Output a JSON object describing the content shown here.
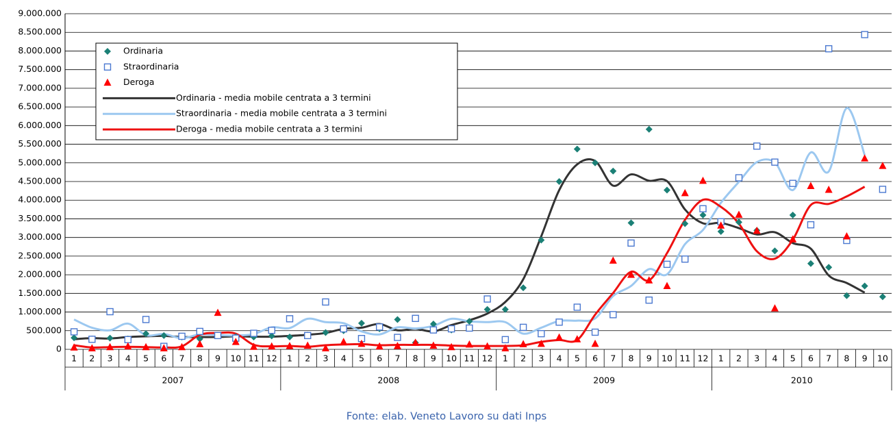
{
  "chart_data": {
    "type": "line",
    "caption": "Fonte: elab. Veneto Lavoro su dati Inps",
    "groups": [
      {
        "name": "2007",
        "categories": [
          "1",
          "2",
          "3",
          "4",
          "5",
          "6",
          "7",
          "8",
          "9",
          "10",
          "11",
          "12"
        ]
      },
      {
        "name": "2008",
        "categories": [
          "1",
          "2",
          "3",
          "4",
          "5",
          "6",
          "7",
          "8",
          "9",
          "10",
          "11",
          "12"
        ]
      },
      {
        "name": "2009",
        "categories": [
          "1",
          "2",
          "3",
          "4",
          "5",
          "6",
          "7",
          "8",
          "9",
          "10",
          "11",
          "12"
        ]
      },
      {
        "name": "2010",
        "categories": [
          "1",
          "2",
          "3",
          "4",
          "5",
          "6",
          "7",
          "8",
          "9",
          "10"
        ]
      }
    ],
    "ylim": [
      0,
      9000000
    ],
    "yticks": [
      0,
      {
        "value": 500000,
        "label": "500.000"
      },
      {
        "value": 1000000,
        "label": "1.000.000"
      },
      {
        "value": 1500000,
        "label": "1.500.000"
      },
      {
        "value": 2000000,
        "label": "2.000.000"
      },
      {
        "value": 2500000,
        "label": "2.500.000"
      },
      {
        "value": 3000000,
        "label": "3.000.000"
      },
      {
        "value": 3500000,
        "label": "3.500.000"
      },
      {
        "value": 4000000,
        "label": "4.000.000"
      },
      {
        "value": 4500000,
        "label": "4.500.000"
      },
      {
        "value": 5000000,
        "label": "5.000.000"
      },
      {
        "value": 5500000,
        "label": "5.500.000"
      },
      {
        "value": 6000000,
        "label": "6.000.000"
      },
      {
        "value": 6500000,
        "label": "6.500.000"
      },
      {
        "value": 7000000,
        "label": "7.000.000"
      },
      {
        "value": 7500000,
        "label": "7.500.000"
      },
      {
        "value": 8000000,
        "label": "8.000.000"
      },
      {
        "value": 8500000,
        "label": "8.500.000"
      },
      {
        "value": 9000000,
        "label": "9.000.000"
      }
    ],
    "grid": true,
    "legend": "upper left",
    "series": [
      {
        "name": "Ordinaria",
        "marker": "diamond",
        "color": "#1b8076",
        "values": [
          310000,
          280000,
          300000,
          280000,
          420000,
          370000,
          330000,
          280000,
          380000,
          340000,
          330000,
          360000,
          330000,
          380000,
          450000,
          500000,
          700000,
          550000,
          800000,
          180000,
          680000,
          520000,
          750000,
          1070000,
          1070000,
          1650000,
          2930000,
          4500000,
          5370000,
          5000000,
          4780000,
          3390000,
          5900000,
          4270000,
          3370000,
          3600000,
          3160000,
          3410000,
          3190000,
          2640000,
          3600000,
          2300000,
          2200000,
          1440000,
          1700000,
          1410000
        ]
      },
      {
        "name": "Straordinaria",
        "marker": "square",
        "color": "#4a78d0",
        "values": [
          470000,
          270000,
          1010000,
          260000,
          800000,
          80000,
          350000,
          480000,
          370000,
          300000,
          430000,
          510000,
          820000,
          370000,
          1270000,
          550000,
          290000,
          600000,
          320000,
          830000,
          520000,
          550000,
          570000,
          1350000,
          260000,
          590000,
          420000,
          730000,
          1130000,
          460000,
          930000,
          2850000,
          1320000,
          2280000,
          2420000,
          3770000,
          3420000,
          4600000,
          5450000,
          5020000,
          4450000,
          3340000,
          8060000,
          2920000,
          8440000,
          4290000
        ]
      },
      {
        "name": "Deroga",
        "marker": "triangle",
        "color": "#ff0000",
        "values": [
          50000,
          30000,
          60000,
          80000,
          60000,
          30000,
          60000,
          140000,
          980000,
          200000,
          70000,
          80000,
          90000,
          100000,
          30000,
          200000,
          150000,
          80000,
          90000,
          180000,
          100000,
          60000,
          130000,
          80000,
          30000,
          140000,
          150000,
          320000,
          270000,
          150000,
          2380000,
          2000000,
          1850000,
          1700000,
          4190000,
          4520000,
          3320000,
          3610000,
          3180000,
          1100000,
          2950000,
          4380000,
          4280000,
          3030000,
          5120000,
          4920000
        ]
      },
      {
        "name": "Ordinaria  - media mobile centrata a 3 termini",
        "marker": "line",
        "color": "#333333",
        "values": [
          270000,
          300000,
          290000,
          330000,
          350000,
          360000,
          330000,
          330000,
          330000,
          350000,
          340000,
          340000,
          360000,
          390000,
          440000,
          550000,
          580000,
          680000,
          510000,
          550000,
          480000,
          650000,
          780000,
          960000,
          1270000,
          1880000,
          3030000,
          4270000,
          4960000,
          5050000,
          4390000,
          4690000,
          4520000,
          4510000,
          3750000,
          3380000,
          3390000,
          3250000,
          3080000,
          3140000,
          2850000,
          2700000,
          1980000,
          1780000,
          1520000,
          null
        ]
      },
      {
        "name": "Straordinaria - media mobile centrata a 3 termini",
        "marker": "line",
        "color": "#9cc8f0",
        "values": [
          800000,
          580000,
          510000,
          690000,
          380000,
          410000,
          300000,
          400000,
          380000,
          370000,
          410000,
          590000,
          570000,
          820000,
          730000,
          700000,
          480000,
          400000,
          590000,
          560000,
          630000,
          820000,
          750000,
          730000,
          730000,
          420000,
          580000,
          760000,
          770000,
          830000,
          1430000,
          1700000,
          2150000,
          2010000,
          2820000,
          3200000,
          3930000,
          4490000,
          5020000,
          5010000,
          4270000,
          5280000,
          4770000,
          6470000,
          5210000,
          null
        ]
      },
      {
        "name": "Deroga - media mobile centrata a 3 termini",
        "marker": "line",
        "color": "#ee1111",
        "values": [
          110000,
          50000,
          60000,
          70000,
          60000,
          50000,
          80000,
          390000,
          440000,
          420000,
          120000,
          80000,
          90000,
          70000,
          110000,
          130000,
          140000,
          110000,
          120000,
          120000,
          120000,
          100000,
          90000,
          90000,
          90000,
          110000,
          200000,
          250000,
          250000,
          930000,
          1510000,
          2080000,
          1850000,
          2580000,
          3470000,
          4010000,
          3820000,
          3370000,
          2630000,
          2430000,
          2940000,
          3870000,
          3900000,
          4100000,
          4360000,
          null
        ]
      }
    ]
  }
}
